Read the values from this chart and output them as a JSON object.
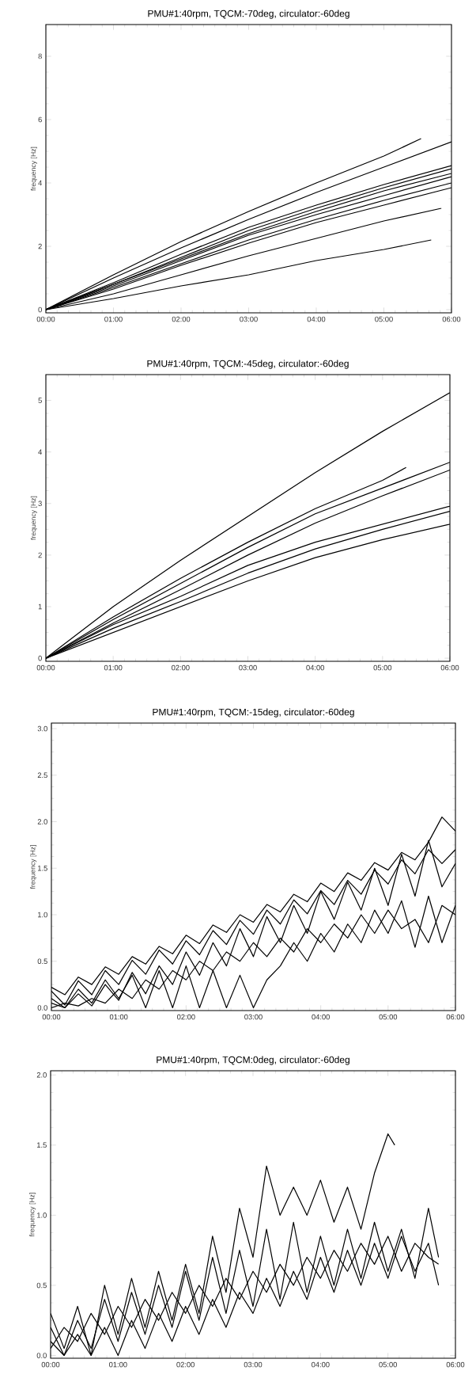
{
  "chart_data": [
    {
      "type": "line",
      "title": "PMU#1:40rpm, TQCM:-70deg, circulator:-60deg",
      "ylabel": "frequency [Hz]",
      "xlim": [
        0,
        6
      ],
      "ylim": [
        -0.1,
        9
      ],
      "xticks": [
        {
          "value": 0,
          "label": "00:00"
        },
        {
          "value": 1,
          "label": "01:00"
        },
        {
          "value": 2,
          "label": "02:00"
        },
        {
          "value": 3,
          "label": "03:00"
        },
        {
          "value": 4,
          "label": "04:00"
        },
        {
          "value": 5,
          "label": "05:00"
        },
        {
          "value": 6,
          "label": "06:00"
        }
      ],
      "yticks": [
        0,
        2,
        4,
        6,
        8
      ],
      "series": [
        {
          "color": "#000000",
          "x": [
            0,
            1,
            2,
            3,
            4,
            5,
            5.55
          ],
          "values": [
            0,
            1.1,
            2.15,
            3.1,
            4.0,
            4.85,
            5.4
          ]
        },
        {
          "color": "#000000",
          "x": [
            0,
            1,
            2,
            3,
            4,
            5,
            6
          ],
          "values": [
            0,
            1.0,
            1.95,
            2.85,
            3.7,
            4.5,
            5.3
          ]
        },
        {
          "color": "#000000",
          "x": [
            0,
            1,
            2,
            3,
            4,
            5,
            6
          ],
          "values": [
            0,
            0.85,
            1.75,
            2.6,
            3.3,
            3.95,
            4.55
          ]
        },
        {
          "color": "#000000",
          "x": [
            0,
            1,
            2,
            3,
            4,
            5,
            6
          ],
          "values": [
            0,
            0.8,
            1.65,
            2.5,
            3.2,
            3.85,
            4.45
          ]
        },
        {
          "color": "#000000",
          "x": [
            0,
            1,
            2,
            3,
            4,
            5,
            6
          ],
          "values": [
            0,
            0.8,
            1.6,
            2.4,
            3.1,
            3.75,
            4.3
          ]
        },
        {
          "color": "#000000",
          "x": [
            0,
            1,
            2,
            3,
            4,
            5,
            6
          ],
          "values": [
            0,
            0.75,
            1.55,
            2.35,
            3.0,
            3.6,
            4.2
          ]
        },
        {
          "color": "#000000",
          "x": [
            0,
            1,
            2,
            3,
            4,
            5,
            6
          ],
          "values": [
            0,
            0.7,
            1.45,
            2.2,
            2.85,
            3.45,
            4.0
          ]
        },
        {
          "color": "#000000",
          "x": [
            0,
            1,
            2,
            3,
            4,
            5,
            6
          ],
          "values": [
            0,
            0.65,
            1.4,
            2.1,
            2.75,
            3.3,
            3.85
          ]
        },
        {
          "color": "#000000",
          "x": [
            0,
            1,
            2,
            3,
            4,
            5,
            5.85
          ],
          "values": [
            0,
            0.5,
            1.1,
            1.7,
            2.25,
            2.8,
            3.2
          ]
        },
        {
          "color": "#000000",
          "x": [
            0,
            1,
            2,
            3,
            4,
            5,
            5.7
          ],
          "values": [
            0,
            0.35,
            0.75,
            1.1,
            1.55,
            1.9,
            2.2
          ]
        }
      ]
    },
    {
      "type": "line",
      "title": "PMU#1:40rpm, TQCM:-45deg, circulator:-60deg",
      "ylabel": "frequency [Hz]",
      "xlim": [
        0,
        6
      ],
      "ylim": [
        -0.06,
        5.5
      ],
      "xticks": [
        {
          "value": 0,
          "label": "00:00"
        },
        {
          "value": 1,
          "label": "01:00"
        },
        {
          "value": 2,
          "label": "02:00"
        },
        {
          "value": 3,
          "label": "03:00"
        },
        {
          "value": 4,
          "label": "04:00"
        },
        {
          "value": 5,
          "label": "05:00"
        },
        {
          "value": 6,
          "label": "06:00"
        }
      ],
      "yticks": [
        0,
        1,
        2,
        3,
        4,
        5
      ],
      "series": [
        {
          "color": "#000000",
          "x": [
            0,
            1,
            2,
            3,
            4,
            5,
            6
          ],
          "values": [
            0,
            1.0,
            1.9,
            2.75,
            3.6,
            4.4,
            5.15
          ]
        },
        {
          "color": "#000000",
          "x": [
            0,
            1,
            2,
            3,
            4,
            5,
            5.35
          ],
          "values": [
            0,
            0.8,
            1.55,
            2.25,
            2.9,
            3.45,
            3.7
          ]
        },
        {
          "color": "#000000",
          "x": [
            0,
            1,
            2,
            3,
            4,
            5,
            6
          ],
          "values": [
            0,
            0.75,
            1.45,
            2.15,
            2.8,
            3.3,
            3.8
          ]
        },
        {
          "color": "#000000",
          "x": [
            0,
            1,
            2,
            3,
            4,
            5,
            6
          ],
          "values": [
            0,
            0.68,
            1.33,
            2.0,
            2.62,
            3.15,
            3.65
          ]
        },
        {
          "color": "#000000",
          "x": [
            0,
            1,
            2,
            3,
            4,
            5,
            6
          ],
          "values": [
            0,
            0.65,
            1.2,
            1.8,
            2.25,
            2.6,
            2.95
          ]
        },
        {
          "color": "#000000",
          "x": [
            0,
            1,
            2,
            3,
            4,
            5,
            6
          ],
          "values": [
            0,
            0.58,
            1.1,
            1.65,
            2.12,
            2.5,
            2.85
          ]
        },
        {
          "color": "#000000",
          "x": [
            0,
            1,
            2,
            3,
            4,
            5,
            6
          ],
          "values": [
            0,
            0.5,
            1.0,
            1.5,
            1.95,
            2.3,
            2.6
          ]
        }
      ]
    },
    {
      "type": "line",
      "title": "PMU#1:40rpm, TQCM:-15deg, circulator:-60deg",
      "ylabel": "frequency [Hz]",
      "xlim": [
        0,
        6
      ],
      "ylim": [
        -0.03,
        3.06
      ],
      "xticks": [
        {
          "value": 0,
          "label": "00:00"
        },
        {
          "value": 1,
          "label": "01:00"
        },
        {
          "value": 2,
          "label": "02:00"
        },
        {
          "value": 3,
          "label": "03:00"
        },
        {
          "value": 4,
          "label": "04:00"
        },
        {
          "value": 5,
          "label": "05:00"
        },
        {
          "value": 6,
          "label": "06:00"
        }
      ],
      "yticks": [
        {
          "value": 0,
          "label": "0.0"
        },
        {
          "value": 0.5,
          "label": "0.5"
        },
        {
          "value": 1,
          "label": "1.0"
        },
        {
          "value": 1.5,
          "label": "1.5"
        },
        {
          "value": 2,
          "label": "2.0"
        },
        {
          "value": 2.5,
          "label": "2.5"
        },
        {
          "value": 3,
          "label": "3.0"
        }
      ],
      "series": [
        {
          "color": "#000000",
          "x": [
            0,
            0.2,
            0.4,
            0.6,
            0.8,
            1.0,
            1.2,
            1.4,
            1.6,
            1.8,
            2.0,
            2.2,
            2.4,
            2.6,
            2.8,
            3.0,
            3.2,
            3.4,
            3.6,
            3.8,
            4.0,
            4.2,
            4.4,
            4.6,
            4.8,
            5.0,
            5.2,
            5.4,
            5.6,
            5.8,
            6.0
          ],
          "values": [
            0.22,
            0.14,
            0.33,
            0.25,
            0.44,
            0.36,
            0.55,
            0.47,
            0.66,
            0.58,
            0.78,
            0.69,
            0.89,
            0.81,
            1.0,
            0.92,
            1.11,
            1.03,
            1.22,
            1.14,
            1.34,
            1.25,
            1.45,
            1.37,
            1.56,
            1.48,
            1.67,
            1.59,
            1.78,
            2.05,
            1.9
          ]
        },
        {
          "color": "#000000",
          "x": [
            0,
            0.2,
            0.4,
            0.6,
            0.8,
            1.0,
            1.2,
            1.4,
            1.6,
            1.8,
            2.0,
            2.2,
            2.4,
            2.6,
            2.8,
            3.0,
            3.2,
            3.4,
            3.6,
            3.8,
            4.0,
            4.2,
            4.4,
            4.6,
            4.8,
            5.0,
            5.2,
            5.4,
            5.6,
            5.8,
            6.0
          ],
          "values": [
            0.18,
            0.03,
            0.29,
            0.14,
            0.4,
            0.25,
            0.51,
            0.36,
            0.62,
            0.47,
            0.72,
            0.57,
            0.83,
            0.68,
            0.94,
            0.79,
            1.05,
            0.9,
            1.16,
            1.01,
            1.26,
            1.11,
            1.37,
            1.22,
            1.48,
            1.33,
            1.59,
            1.44,
            1.7,
            1.55,
            1.7
          ]
        },
        {
          "color": "#000000",
          "x": [
            0,
            0.2,
            0.4,
            0.6,
            0.8,
            1.0,
            1.2,
            1.4,
            1.6,
            1.8,
            2.0,
            2.2,
            2.4,
            2.6,
            2.8,
            3.0,
            3.2,
            3.4,
            3.6,
            3.8,
            4.0,
            4.2,
            4.4,
            4.6,
            4.8,
            5.0,
            5.2,
            5.4,
            5.6,
            5.8,
            6.0
          ],
          "values": [
            0.05,
            0,
            0.15,
            0.02,
            0.25,
            0.08,
            0.38,
            0.15,
            0.45,
            0.25,
            0.6,
            0.35,
            0.7,
            0.45,
            0.85,
            0.55,
            0.98,
            0.7,
            1.1,
            0.8,
            1.25,
            0.95,
            1.35,
            1.05,
            1.5,
            1.1,
            1.65,
            1.2,
            1.8,
            1.3,
            1.55
          ]
        },
        {
          "color": "#000000",
          "x": [
            0,
            0.2,
            0.4,
            0.6,
            0.8,
            1.0,
            1.2,
            1.4,
            1.6,
            1.8,
            2.0,
            2.2,
            2.4,
            2.6,
            2.8,
            3.0,
            3.2,
            3.4,
            3.6,
            3.8,
            4.0,
            4.2,
            4.4,
            4.6,
            4.8,
            5.0,
            5.2,
            5.4,
            5.6,
            5.8,
            6.0
          ],
          "values": [
            0.1,
            0,
            0.2,
            0.05,
            0.3,
            0.1,
            0.35,
            0,
            0.4,
            0,
            0.45,
            0,
            0.4,
            0,
            0.35,
            0,
            0.3,
            0.45,
            0.7,
            0.5,
            0.8,
            0.6,
            0.9,
            0.7,
            1.05,
            0.8,
            1.15,
            0.65,
            1.2,
            0.7,
            1.1
          ]
        },
        {
          "color": "#000000",
          "x": [
            0,
            0.2,
            0.4,
            0.6,
            0.8,
            1.0,
            1.2,
            1.4,
            1.6,
            1.8,
            2.0,
            2.2,
            2.4,
            2.6,
            2.8,
            3.0,
            3.2,
            3.4,
            3.6,
            3.8,
            4.0,
            4.2,
            4.4,
            4.6,
            4.8,
            5.0,
            5.2,
            5.4,
            5.6,
            5.8,
            6.0
          ],
          "values": [
            0,
            0.05,
            0.02,
            0.1,
            0.05,
            0.2,
            0.1,
            0.3,
            0.2,
            0.4,
            0.3,
            0.5,
            0.4,
            0.6,
            0.5,
            0.7,
            0.55,
            0.75,
            0.6,
            0.85,
            0.7,
            0.9,
            0.75,
            1.0,
            0.8,
            1.05,
            0.85,
            0.95,
            0.7,
            1.1,
            1.0
          ]
        }
      ]
    },
    {
      "type": "line",
      "title": "PMU#1:40rpm, TQCM:0deg, circulator:-60deg",
      "ylabel": "frequency [Hz]",
      "xlim": [
        0,
        6
      ],
      "ylim": [
        -0.02,
        2.03
      ],
      "xticks": [
        {
          "value": 0,
          "label": "00:00"
        },
        {
          "value": 1,
          "label": "01:00"
        },
        {
          "value": 2,
          "label": "02:00"
        },
        {
          "value": 3,
          "label": "03:00"
        },
        {
          "value": 4,
          "label": "04:00"
        },
        {
          "value": 5,
          "label": "05:00"
        },
        {
          "value": 6,
          "label": "06:00"
        }
      ],
      "yticks": [
        {
          "value": 0,
          "label": "0.0"
        },
        {
          "value": 0.5,
          "label": "0.5"
        },
        {
          "value": 1,
          "label": "1.0"
        },
        {
          "value": 1.5,
          "label": "1.5"
        },
        {
          "value": 2,
          "label": "2.0"
        }
      ],
      "series": [
        {
          "color": "#000000",
          "x": [
            0,
            0.2,
            0.4,
            0.6,
            0.8,
            1.0,
            1.2,
            1.4,
            1.6,
            1.8,
            2.0,
            2.2,
            2.4,
            2.6,
            2.8,
            3.0,
            3.2,
            3.4,
            3.6,
            3.8,
            4.0,
            4.2,
            4.4,
            4.6,
            4.8,
            5.0,
            5.1
          ],
          "values": [
            0.3,
            0.05,
            0.35,
            0,
            0.5,
            0.15,
            0.55,
            0.2,
            0.6,
            0.25,
            0.65,
            0.3,
            0.85,
            0.45,
            1.05,
            0.7,
            1.35,
            1.0,
            1.2,
            1.0,
            1.25,
            0.95,
            1.2,
            0.9,
            1.3,
            1.58,
            1.5
          ]
        },
        {
          "color": "#000000",
          "x": [
            0,
            0.2,
            0.4,
            0.6,
            0.8,
            1.0,
            1.2,
            1.4,
            1.6,
            1.8,
            2.0,
            2.2,
            2.4,
            2.6,
            2.8,
            3.0,
            3.2,
            3.4,
            3.6,
            3.8,
            4.0,
            4.2,
            4.4,
            4.6,
            4.8,
            5.0,
            5.2,
            5.4,
            5.6,
            5.75
          ],
          "values": [
            0.2,
            0,
            0.25,
            0.05,
            0.4,
            0.1,
            0.45,
            0.15,
            0.5,
            0.2,
            0.6,
            0.25,
            0.7,
            0.3,
            0.75,
            0.35,
            0.9,
            0.4,
            0.95,
            0.45,
            0.85,
            0.5,
            0.9,
            0.55,
            0.95,
            0.6,
            0.9,
            0.55,
            1.05,
            0.7
          ]
        },
        {
          "color": "#000000",
          "x": [
            0,
            0.2,
            0.4,
            0.6,
            0.8,
            1.0,
            1.2,
            1.4,
            1.6,
            1.8,
            2.0,
            2.2,
            2.4,
            2.6,
            2.8,
            3.0,
            3.2,
            3.4,
            3.6,
            3.8,
            4.0,
            4.2,
            4.4,
            4.6,
            4.8,
            5.0,
            5.2,
            5.4,
            5.6,
            5.75
          ],
          "values": [
            0.1,
            0,
            0.15,
            0,
            0.2,
            0,
            0.25,
            0.05,
            0.3,
            0.1,
            0.35,
            0.15,
            0.4,
            0.2,
            0.45,
            0.3,
            0.55,
            0.35,
            0.6,
            0.4,
            0.7,
            0.45,
            0.75,
            0.5,
            0.8,
            0.55,
            0.85,
            0.6,
            0.8,
            0.5
          ]
        },
        {
          "color": "#000000",
          "x": [
            0,
            0.2,
            0.4,
            0.6,
            0.8,
            1.0,
            1.2,
            1.4,
            1.6,
            1.8,
            2.0,
            2.2,
            2.4,
            2.6,
            2.8,
            3.0,
            3.2,
            3.4,
            3.6,
            3.8,
            4.0,
            4.2,
            4.4,
            4.6,
            4.8,
            5.0,
            5.2,
            5.4,
            5.6,
            5.75
          ],
          "values": [
            0.05,
            0.2,
            0.1,
            0.3,
            0.15,
            0.35,
            0.2,
            0.4,
            0.25,
            0.45,
            0.3,
            0.5,
            0.35,
            0.55,
            0.4,
            0.6,
            0.45,
            0.65,
            0.5,
            0.7,
            0.55,
            0.75,
            0.6,
            0.8,
            0.65,
            0.85,
            0.6,
            0.8,
            0.7,
            0.65
          ]
        }
      ]
    }
  ]
}
